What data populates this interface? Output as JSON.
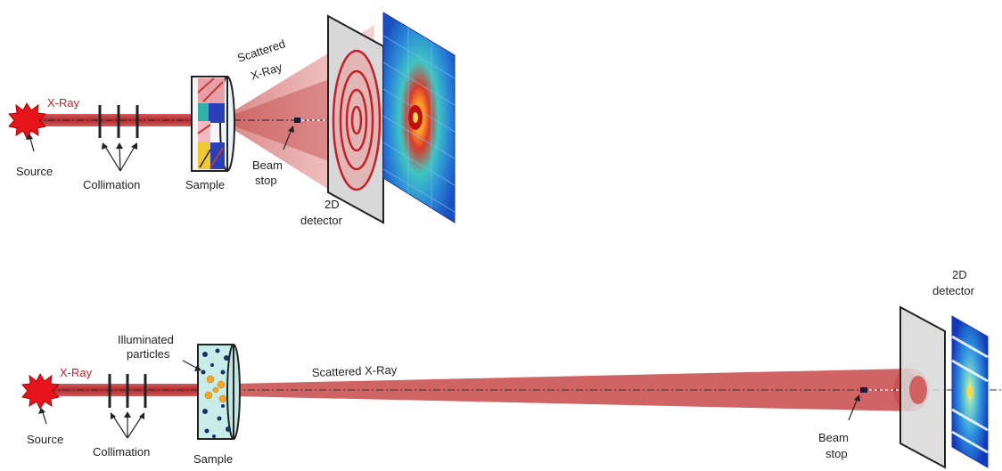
{
  "top": {
    "labels": {
      "xray": "X-Ray",
      "source": "Source",
      "collimation": "Collimation",
      "sample": "Sample",
      "scattered": "Scattered",
      "xray2": "X-Ray",
      "beam": "Beam",
      "stop": "stop",
      "det_2d": "2D",
      "detector": "detector"
    }
  },
  "bottom": {
    "labels": {
      "xray": "X-Ray",
      "source": "Source",
      "collimation": "Collimation",
      "sample": "Sample",
      "illuminated": "Illuminated",
      "particles": "particles",
      "scattered_xray": "Scattered X-Ray",
      "beam": "Beam",
      "stop": "stop",
      "det_2d": "2D",
      "detector": "detector"
    }
  },
  "colors": {
    "beam": "#c0242c",
    "source": "#e8141c",
    "label_red": "#c0242c",
    "detector_panel": "#d8d8d8",
    "pattern_blue": "#1e5ccc"
  }
}
